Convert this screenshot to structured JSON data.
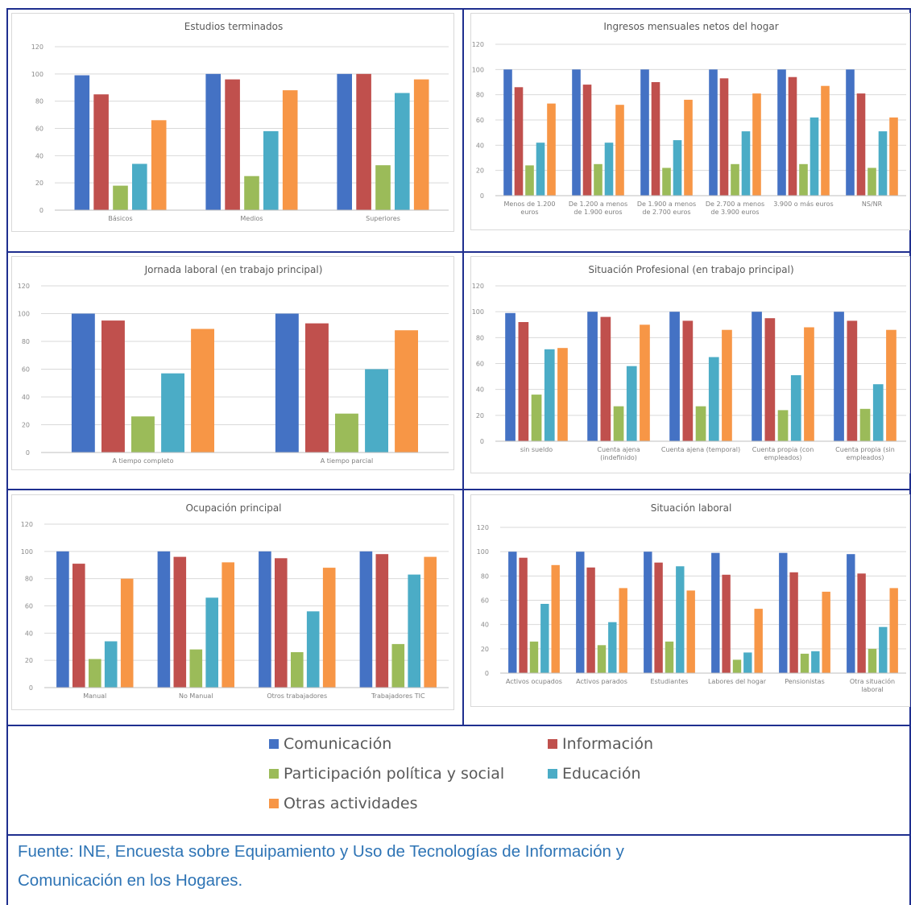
{
  "colors": {
    "series": [
      "#4472c4",
      "#c0504d",
      "#9bbb59",
      "#4bacc6",
      "#f79646"
    ],
    "frame": "#1f2f8f",
    "grid": "#d9d9d9",
    "source_text": "#2e74b5"
  },
  "legend": {
    "items": [
      "Comunicación",
      "Información",
      "Participación política y social",
      "Educación",
      "Otras actividades"
    ]
  },
  "source": {
    "line1": "Fuente: INE, Encuesta sobre Equipamiento y Uso de Tecnologías de Información y",
    "line2": "Comunicación en los Hogares."
  },
  "chart_data": [
    {
      "type": "bar",
      "title": "Estudios terminados",
      "ylim": [
        0,
        120
      ],
      "yticks": [
        "0",
        "20",
        "40",
        "60",
        "80",
        "100",
        "120"
      ],
      "grid": true,
      "categories": [
        [
          "Básicos"
        ],
        [
          "Medios"
        ],
        [
          "Superiores"
        ]
      ],
      "series": [
        {
          "name": "Comunicación",
          "values": [
            99,
            100,
            100
          ]
        },
        {
          "name": "Información",
          "values": [
            85,
            96,
            100
          ]
        },
        {
          "name": "Participación política y social",
          "values": [
            18,
            25,
            33
          ]
        },
        {
          "name": "Educación",
          "values": [
            34,
            58,
            86
          ]
        },
        {
          "name": "Otras actividades",
          "values": [
            66,
            88,
            96
          ]
        }
      ]
    },
    {
      "type": "bar",
      "title": "Ingresos mensuales netos del hogar",
      "ylim": [
        0,
        120
      ],
      "yticks": [
        "0",
        "20",
        "40",
        "60",
        "80",
        "100",
        "120"
      ],
      "grid": true,
      "categories": [
        [
          "Menos de 1.200",
          "euros"
        ],
        [
          "De 1.200 a menos",
          "de 1.900 euros"
        ],
        [
          "De 1.900 a menos",
          "de 2.700 euros"
        ],
        [
          "De 2.700 a menos",
          "de 3.900 euros"
        ],
        [
          "3.900 o más euros"
        ],
        [
          "NS/NR"
        ]
      ],
      "series": [
        {
          "name": "Comunicación",
          "values": [
            100,
            100,
            100,
            100,
            100,
            100
          ]
        },
        {
          "name": "Información",
          "values": [
            86,
            88,
            90,
            93,
            94,
            81
          ]
        },
        {
          "name": "Participación política y social",
          "values": [
            24,
            25,
            22,
            25,
            25,
            22
          ]
        },
        {
          "name": "Educación",
          "values": [
            42,
            42,
            44,
            51,
            62,
            51
          ]
        },
        {
          "name": "Otras actividades",
          "values": [
            73,
            72,
            76,
            81,
            87,
            62
          ]
        }
      ]
    },
    {
      "type": "bar",
      "title": "Jornada laboral (en trabajo principal)",
      "ylim": [
        0,
        120
      ],
      "yticks": [
        "0",
        "20",
        "40",
        "60",
        "80",
        "100",
        "120"
      ],
      "grid": true,
      "categories": [
        [
          "A tiempo completo"
        ],
        [
          "A tiempo parcial"
        ]
      ],
      "series": [
        {
          "name": "Comunicación",
          "values": [
            100,
            100
          ]
        },
        {
          "name": "Información",
          "values": [
            95,
            93
          ]
        },
        {
          "name": "Participación política y social",
          "values": [
            26,
            28
          ]
        },
        {
          "name": "Educación",
          "values": [
            57,
            60
          ]
        },
        {
          "name": "Otras actividades",
          "values": [
            89,
            88
          ]
        }
      ]
    },
    {
      "type": "bar",
      "title": "Situación Profesional  (en trabajo principal)",
      "ylim": [
        0,
        120
      ],
      "yticks": [
        "0",
        "20",
        "40",
        "60",
        "80",
        "100",
        "120"
      ],
      "grid": true,
      "categories": [
        [
          "sin sueldo"
        ],
        [
          "Cuenta ajena",
          "(indefinido)"
        ],
        [
          "Cuenta ajena (temporal)"
        ],
        [
          "Cuenta propia (con",
          "empleados)"
        ],
        [
          "Cuenta propia (sin",
          "empleados)"
        ]
      ],
      "series": [
        {
          "name": "Comunicación",
          "values": [
            99,
            100,
            100,
            100,
            100
          ]
        },
        {
          "name": "Información",
          "values": [
            92,
            96,
            93,
            95,
            93
          ]
        },
        {
          "name": "Participación política y social",
          "values": [
            36,
            27,
            27,
            24,
            25
          ]
        },
        {
          "name": "Educación",
          "values": [
            71,
            58,
            65,
            51,
            44
          ]
        },
        {
          "name": "Otras actividades",
          "values": [
            72,
            90,
            86,
            88,
            86
          ]
        }
      ]
    },
    {
      "type": "bar",
      "title": "Ocupación principal",
      "ylim": [
        0,
        120
      ],
      "yticks": [
        "0",
        "20",
        "40",
        "60",
        "80",
        "100",
        "120"
      ],
      "grid": true,
      "categories": [
        [
          "Manual"
        ],
        [
          "No Manual"
        ],
        [
          "Otros trabajadores"
        ],
        [
          "Trabajadores TIC"
        ]
      ],
      "series": [
        {
          "name": "Comunicación",
          "values": [
            100,
            100,
            100,
            100
          ]
        },
        {
          "name": "Información",
          "values": [
            91,
            96,
            95,
            98
          ]
        },
        {
          "name": "Participación política y social",
          "values": [
            21,
            28,
            26,
            32
          ]
        },
        {
          "name": "Educación",
          "values": [
            34,
            66,
            56,
            83
          ]
        },
        {
          "name": "Otras actividades",
          "values": [
            80,
            92,
            88,
            96
          ]
        }
      ]
    },
    {
      "type": "bar",
      "title": "Situación laboral",
      "ylim": [
        0,
        120
      ],
      "yticks": [
        "0",
        "20",
        "40",
        "60",
        "80",
        "100",
        "120"
      ],
      "grid": true,
      "categories": [
        [
          "Activos ocupados"
        ],
        [
          "Activos parados"
        ],
        [
          "Estudiantes"
        ],
        [
          "Labores del hogar"
        ],
        [
          "Pensionistas"
        ],
        [
          "Otra situación",
          "laboral"
        ]
      ],
      "series": [
        {
          "name": "Comunicación",
          "values": [
            100,
            100,
            100,
            99,
            99,
            98
          ]
        },
        {
          "name": "Información",
          "values": [
            95,
            87,
            91,
            81,
            83,
            82
          ]
        },
        {
          "name": "Participación política y social",
          "values": [
            26,
            23,
            26,
            11,
            16,
            20
          ]
        },
        {
          "name": "Educación",
          "values": [
            57,
            42,
            88,
            17,
            18,
            38
          ]
        },
        {
          "name": "Otras actividades",
          "values": [
            89,
            70,
            68,
            53,
            67,
            70
          ]
        }
      ]
    }
  ]
}
